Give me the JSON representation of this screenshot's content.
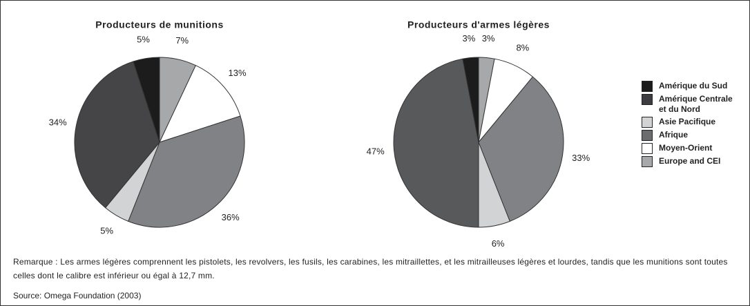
{
  "chart_data": [
    {
      "type": "pie",
      "title": "Producteurs de munitions",
      "values": [
        7,
        13,
        36,
        5,
        34,
        5
      ],
      "value_labels": [
        "7%",
        "13%",
        "36%",
        "5%",
        "34%",
        "5%"
      ],
      "colors": [
        "#a7a8aa",
        "#ffffff",
        "#818285",
        "#d2d3d5",
        "#454547",
        "#1c1c1c"
      ]
    },
    {
      "type": "pie",
      "title": "Producteurs d'armes légères",
      "values": [
        3,
        8,
        33,
        6,
        47,
        3
      ],
      "value_labels": [
        "3%",
        "8%",
        "33%",
        "6%",
        "47%",
        "3%"
      ],
      "colors": [
        "#a7a8aa",
        "#ffffff",
        "#818285",
        "#d2d3d5",
        "#58595b",
        "#1c1c1c"
      ]
    }
  ],
  "legend": [
    {
      "name": "Amérique du Sud",
      "color": "#1c1c1c"
    },
    {
      "name": "Amérique Centrale et du Nord",
      "color": "#3d3d3f"
    },
    {
      "name": "Asie Pacifique",
      "color": "#d2d3d5"
    },
    {
      "name": "Afrique",
      "color": "#6b6c6e"
    },
    {
      "name": "Moyen-Orient",
      "color": "#ffffff"
    },
    {
      "name": "Europe and CEI",
      "color": "#a7a8aa"
    }
  ],
  "note": "Remarque : Les armes légères comprennent les pistolets, les revolvers, les fusils, les carabines, les mitraillettes, et les mitrailleuses légères et lourdes, tandis que les munitions sont toutes celles dont le calibre est inférieur ou égal à 12,7 mm.",
  "source": "Source: Omega Foundation (2003)"
}
